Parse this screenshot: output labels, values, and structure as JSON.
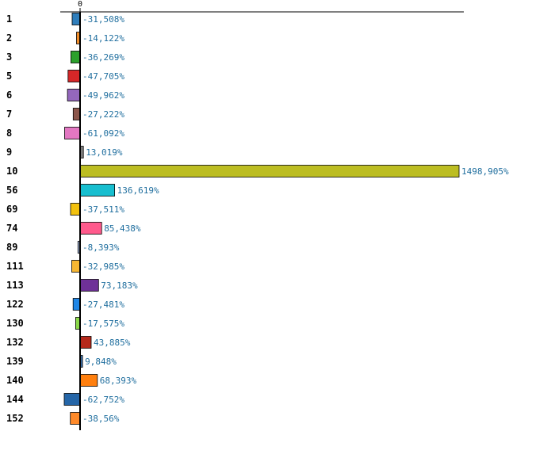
{
  "chart_data": {
    "type": "bar",
    "orientation": "horizontal",
    "title": "",
    "xlabel": "",
    "ylabel": "",
    "xlim": [
      -100,
      1600
    ],
    "x_tick_labels": [
      "0"
    ],
    "grid": false,
    "legend": "none",
    "categories": [
      "1",
      "2",
      "3",
      "5",
      "6",
      "7",
      "8",
      "9",
      "10",
      "56",
      "69",
      "74",
      "89",
      "111",
      "113",
      "122",
      "130",
      "132",
      "139",
      "140",
      "144",
      "152"
    ],
    "values": [
      -31.508,
      -14.122,
      -36.269,
      -47.705,
      -49.962,
      -27.222,
      -61.092,
      13.019,
      1498.905,
      136.619,
      -37.511,
      85.438,
      -8.393,
      -32.985,
      73.183,
      -27.481,
      -17.575,
      43.885,
      9.848,
      68.393,
      -62.752,
      -38.56
    ],
    "value_labels": [
      "-31,508%",
      "-14,122%",
      "-36,269%",
      "-47,705%",
      "-49,962%",
      "-27,222%",
      "-61,092%",
      "13,019%",
      "1498,905%",
      "136,619%",
      "-37,511%",
      "85,438%",
      "-8,393%",
      "-32,985%",
      "73,183%",
      "-27,481%",
      "-17,575%",
      "43,885%",
      "9,848%",
      "68,393%",
      "-62,752%",
      "-38,56%"
    ],
    "colors": [
      "#2f7ebc",
      "#f28e2b",
      "#2ca02c",
      "#d62728",
      "#9467bd",
      "#8c564b",
      "#e377c2",
      "#7f7f7f",
      "#bcbd22",
      "#17becf",
      "#f2c10e",
      "#ff5a8c",
      "#9ac",
      "#f7b733",
      "#6f3198",
      "#1f86e6",
      "#8bd94a",
      "#b5291b",
      "#3a6ea5",
      "#ff7f0e",
      "#2566a8",
      "#ff8a2a"
    ],
    "bar_edge_color": "#000000",
    "label_color": "#1f6e9e"
  }
}
